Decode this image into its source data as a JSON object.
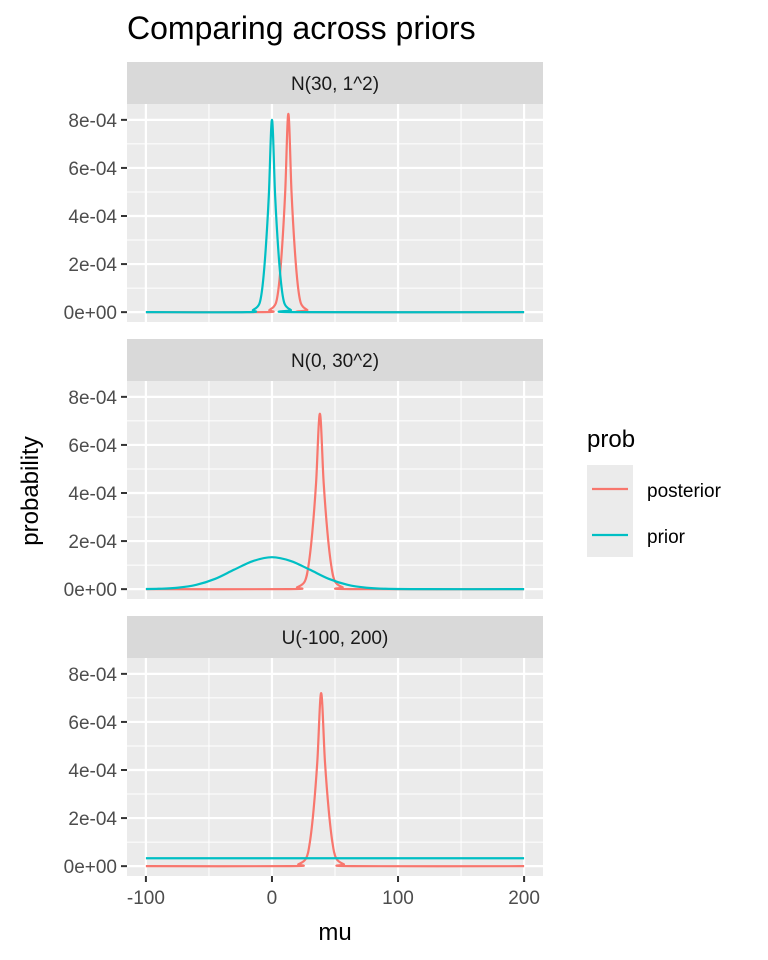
{
  "chart_data": {
    "type": "line",
    "title": "Comparing across priors",
    "xlabel": "mu",
    "ylabel": "probability",
    "xlim": [
      -115,
      215
    ],
    "ylim": [
      -4.1e-05,
      0.000866
    ],
    "x_ticks": [
      -100,
      0,
      100,
      200
    ],
    "x_tick_labels": [
      "-100",
      "0",
      "100",
      "200"
    ],
    "y_ticks": [
      0,
      0.0002,
      0.0004,
      0.0006,
      0.0008
    ],
    "y_tick_labels": [
      "0e+00",
      "2e-04",
      "4e-04",
      "6e-04",
      "8e-04"
    ],
    "grid": true,
    "legend": {
      "title": "prob",
      "placement": "right",
      "entries": [
        {
          "name": "posterior",
          "color": "#F8766D"
        },
        {
          "name": "prior",
          "color": "#00BFC4"
        }
      ]
    },
    "facets": [
      {
        "label": "N(30, 1^2)",
        "series": [
          {
            "name": "posterior",
            "points": [
              [
                -100,
                0
              ],
              [
                -7,
                0
              ],
              [
                -2,
                9e-06
              ],
              [
                3,
                3.6e-05
              ],
              [
                5.5,
                0.000112
              ],
              [
                8,
                0.000268
              ],
              [
                10.5,
                0.0005
              ],
              [
                13,
                0.000825
              ],
              [
                15.5,
                0.0005
              ],
              [
                18,
                0.000268
              ],
              [
                20.5,
                0.000112
              ],
              [
                23,
                3.6e-05
              ],
              [
                28,
                9e-06
              ],
              [
                33,
                0
              ],
              [
                200,
                0
              ]
            ]
          },
          {
            "name": "prior",
            "points": [
              [
                -100,
                0
              ],
              [
                -20,
                0
              ],
              [
                -15,
                9e-06
              ],
              [
                -10,
                3.5e-05
              ],
              [
                -7.5,
                0.000108
              ],
              [
                -5,
                0.00026
              ],
              [
                -2.5,
                0.000485
              ],
              [
                0,
                0.0008
              ],
              [
                2.5,
                0.000485
              ],
              [
                5,
                0.00026
              ],
              [
                7.5,
                0.000108
              ],
              [
                10,
                3.5e-05
              ],
              [
                15,
                9e-06
              ],
              [
                20,
                0
              ],
              [
                200,
                0
              ]
            ]
          }
        ]
      },
      {
        "label": "N(0, 30^2)",
        "series": [
          {
            "name": "posterior",
            "points": [
              [
                -100,
                0
              ],
              [
                14,
                0
              ],
              [
                20,
                8e-06
              ],
              [
                26,
                3.2e-05
              ],
              [
                29,
                9.9e-05
              ],
              [
                32,
                0.000237
              ],
              [
                35,
                0.000443
              ],
              [
                38,
                0.00073
              ],
              [
                41,
                0.000443
              ],
              [
                44,
                0.000237
              ],
              [
                47,
                9.9e-05
              ],
              [
                50,
                3.2e-05
              ],
              [
                56,
                8e-06
              ],
              [
                62,
                0
              ],
              [
                200,
                0
              ]
            ]
          },
          {
            "name": "prior",
            "points": [
              [
                -100,
                5e-07
              ],
              [
                -90,
                1.5e-06
              ],
              [
                -75,
                5.8e-06
              ],
              [
                -60,
                1.8e-05
              ],
              [
                -45,
                4.3e-05
              ],
              [
                -30,
                8.1e-05
              ],
              [
                -15,
                0.000117
              ],
              [
                0,
                0.000133
              ],
              [
                15,
                0.000117
              ],
              [
                30,
                8.1e-05
              ],
              [
                45,
                4.3e-05
              ],
              [
                60,
                1.8e-05
              ],
              [
                75,
                5.8e-06
              ],
              [
                90,
                1.5e-06
              ],
              [
                120,
                0
              ],
              [
                200,
                0
              ]
            ]
          }
        ]
      },
      {
        "label": "U(-100, 200)",
        "series": [
          {
            "name": "posterior",
            "points": [
              [
                -100,
                0
              ],
              [
                15,
                0
              ],
              [
                21,
                8e-06
              ],
              [
                27,
                3.2e-05
              ],
              [
                30,
                9.7e-05
              ],
              [
                33,
                0.000234
              ],
              [
                36,
                0.000437
              ],
              [
                39,
                0.00072
              ],
              [
                42,
                0.000437
              ],
              [
                45,
                0.000234
              ],
              [
                48,
                9.7e-05
              ],
              [
                51,
                3.2e-05
              ],
              [
                57,
                8e-06
              ],
              [
                63,
                0
              ],
              [
                200,
                0
              ]
            ]
          },
          {
            "name": "prior",
            "points": [
              [
                -100,
                3.3e-05
              ],
              [
                200,
                3.3e-05
              ]
            ]
          }
        ]
      }
    ]
  }
}
